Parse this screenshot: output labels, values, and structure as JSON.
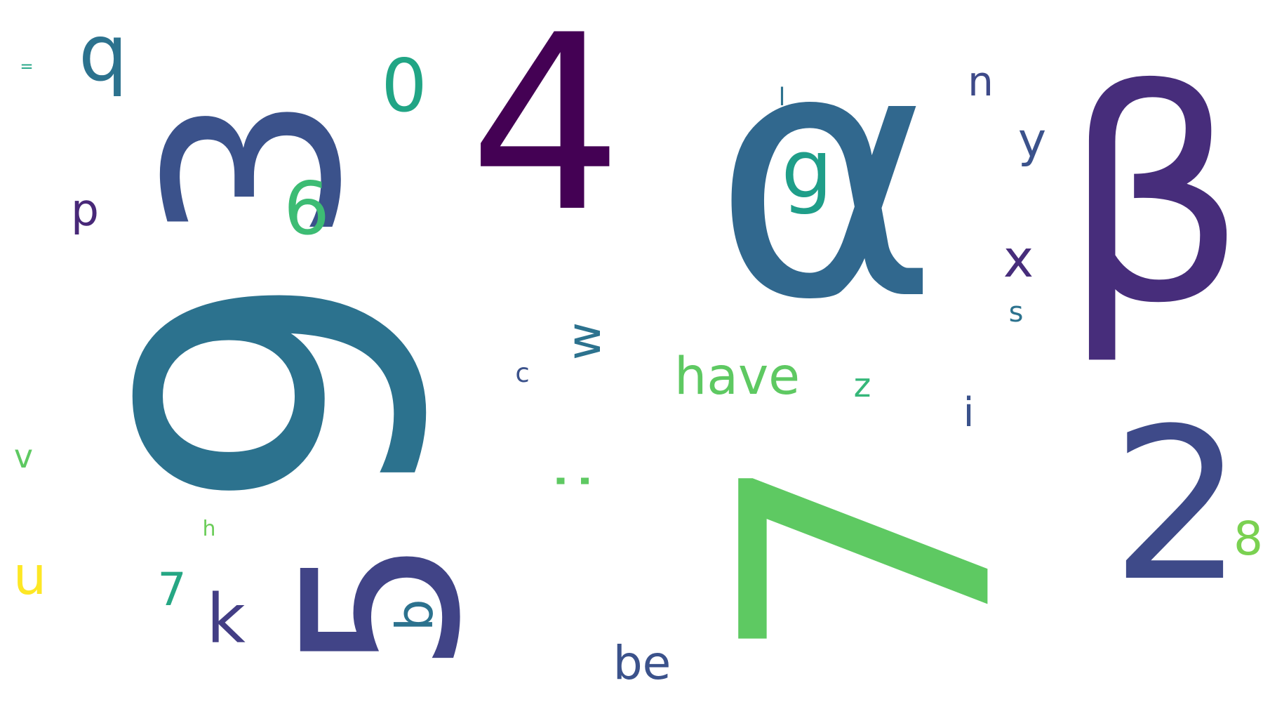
{
  "words": [
    {
      "text": "α",
      "color": "#31688e"
    },
    {
      "text": "4",
      "color": "#440154"
    },
    {
      "text": "β",
      "color": "#472d7b"
    },
    {
      "text": "9",
      "color": "#2c728e",
      "rotated": true
    },
    {
      "text": "3",
      "color": "#3b528b",
      "rotated": true
    },
    {
      "text": "7",
      "color": "#5ec962",
      "rotated": true
    },
    {
      "text": "5",
      "color": "#414487",
      "rotated": true
    },
    {
      "text": "2",
      "color": "#3e4a89"
    },
    {
      "text": ":",
      "color": "#5ec962",
      "rotated": true
    },
    {
      "text": "6",
      "color": "#3dbc74"
    },
    {
      "text": "q",
      "color": "#2c728e"
    },
    {
      "text": "0",
      "color": "#21a585"
    },
    {
      "text": "g",
      "color": "#1f9e89"
    },
    {
      "text": "n",
      "color": "#3e4a89"
    },
    {
      "text": "x",
      "color": "#472d7b"
    },
    {
      "text": "u",
      "color": "#fde725"
    },
    {
      "text": "k",
      "color": "#433e85"
    },
    {
      "text": "be",
      "color": "#3b528b"
    },
    {
      "text": "have",
      "color": "#5ec962"
    },
    {
      "text": "z",
      "color": "#35b779"
    },
    {
      "text": "i",
      "color": "#3b528b"
    },
    {
      "text": "8",
      "color": "#7ad151"
    },
    {
      "text": "w",
      "color": "#2c728e",
      "rotated": true
    },
    {
      "text": "b",
      "color": "#2c728e",
      "rotated": true
    },
    {
      "text": "y",
      "color": "#3b528b"
    },
    {
      "text": "s",
      "color": "#2c728e"
    },
    {
      "text": "p",
      "color": "#482878"
    },
    {
      "text": "c",
      "color": "#3b528b"
    },
    {
      "text": "v",
      "color": "#5ec962"
    },
    {
      "text": "7",
      "color": "#26a784"
    },
    {
      "text": "=",
      "color": "#21a585"
    },
    {
      "text": "l",
      "color": "#2c728e"
    },
    {
      "text": "h",
      "color": "#6ccd5a"
    }
  ]
}
